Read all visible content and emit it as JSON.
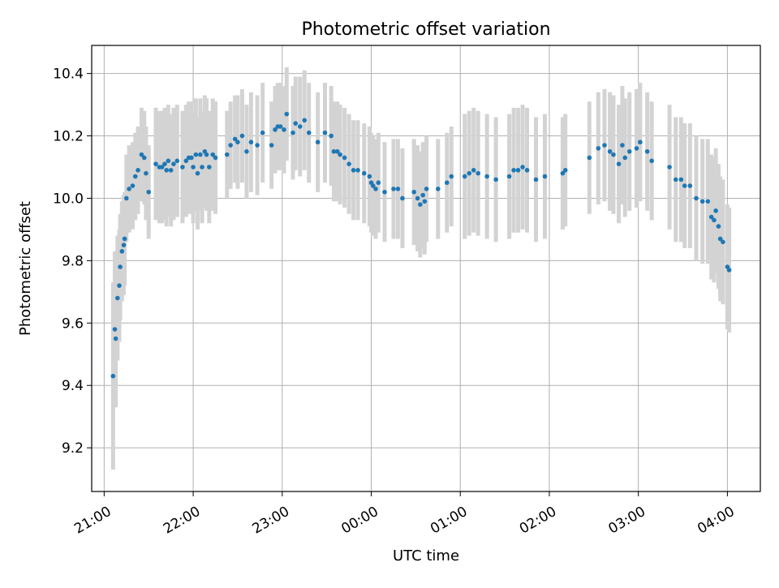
{
  "chart_data": {
    "type": "scatter",
    "title": "Photometric offset variation",
    "xlabel": "UTC time",
    "ylabel": "Photometric offset",
    "xlim_hours": [
      20.86,
      28.37
    ],
    "ylim": [
      9.06,
      10.49
    ],
    "x_tick_hours": [
      21,
      22,
      23,
      24,
      25,
      26,
      27,
      28
    ],
    "x_tick_labels": [
      "21:00",
      "22:00",
      "23:00",
      "00:00",
      "01:00",
      "02:00",
      "03:00",
      "04:00"
    ],
    "y_ticks": [
      9.2,
      9.4,
      9.6,
      9.8,
      10.0,
      10.2,
      10.4
    ],
    "y_tick_labels": [
      "9.2",
      "9.4",
      "9.6",
      "9.8",
      "10.0",
      "10.2",
      "10.4"
    ],
    "grid": true,
    "colors": {
      "points": "#1f77b4",
      "error_bars": "#d3d3d3",
      "grid": "#b0b0b0"
    },
    "series": [
      {
        "x_hours": [
          21.1,
          21.12,
          21.13,
          21.15,
          21.17,
          21.18,
          21.2,
          21.22,
          21.23,
          21.25,
          21.28,
          21.32,
          21.35,
          21.38,
          21.42,
          21.45,
          21.47,
          21.5,
          21.58,
          21.62,
          21.65,
          21.68,
          21.7,
          21.72,
          21.75,
          21.78,
          21.82,
          21.88,
          21.92,
          21.95,
          21.98,
          22.0,
          22.03,
          22.05,
          22.08,
          22.1,
          22.13,
          22.15,
          22.18,
          22.22,
          22.25,
          22.38,
          22.42,
          22.47,
          22.5,
          22.55,
          22.6,
          22.65,
          22.72,
          22.78,
          22.88,
          22.92,
          22.95,
          22.98,
          23.02,
          23.05,
          23.12,
          23.15,
          23.2,
          23.25,
          23.3,
          23.4,
          23.48,
          23.55,
          23.58,
          23.62,
          23.65,
          23.7,
          23.75,
          23.8,
          23.85,
          23.92,
          23.98,
          24.0,
          24.02,
          24.05,
          24.08,
          24.15,
          24.25,
          24.3,
          24.35,
          24.48,
          24.52,
          24.55,
          24.58,
          24.6,
          24.62,
          24.75,
          24.85,
          24.9,
          25.05,
          25.1,
          25.15,
          25.2,
          25.3,
          25.4,
          25.55,
          25.6,
          25.65,
          25.7,
          25.75,
          25.85,
          25.95,
          26.15,
          26.18,
          26.45,
          26.55,
          26.62,
          26.68,
          26.72,
          26.78,
          26.82,
          26.85,
          26.9,
          26.98,
          27.02,
          27.1,
          27.15,
          27.35,
          27.42,
          27.48,
          27.52,
          27.58,
          27.65,
          27.72,
          27.78,
          27.82,
          27.85,
          27.87,
          27.9,
          27.92,
          27.95,
          28.0,
          28.02
        ],
        "y": [
          9.43,
          9.58,
          9.55,
          9.68,
          9.72,
          9.78,
          9.83,
          9.85,
          9.87,
          10.0,
          10.03,
          10.04,
          10.07,
          10.09,
          10.14,
          10.13,
          10.08,
          10.02,
          10.11,
          10.1,
          10.1,
          10.11,
          10.09,
          10.12,
          10.09,
          10.11,
          10.12,
          10.1,
          10.12,
          10.13,
          10.13,
          10.1,
          10.14,
          10.08,
          10.14,
          10.1,
          10.15,
          10.14,
          10.1,
          10.14,
          10.13,
          10.14,
          10.17,
          10.19,
          10.18,
          10.2,
          10.15,
          10.18,
          10.17,
          10.21,
          10.17,
          10.22,
          10.23,
          10.23,
          10.22,
          10.27,
          10.21,
          10.24,
          10.23,
          10.25,
          10.21,
          10.18,
          10.21,
          10.2,
          10.15,
          10.15,
          10.14,
          10.13,
          10.11,
          10.09,
          10.09,
          10.08,
          10.07,
          10.05,
          10.04,
          10.03,
          10.05,
          10.02,
          10.03,
          10.03,
          10.0,
          10.02,
          10.0,
          9.98,
          10.01,
          9.99,
          10.03,
          10.03,
          10.05,
          10.07,
          10.07,
          10.08,
          10.09,
          10.08,
          10.07,
          10.06,
          10.07,
          10.09,
          10.09,
          10.1,
          10.09,
          10.06,
          10.07,
          10.08,
          10.09,
          10.13,
          10.16,
          10.17,
          10.15,
          10.14,
          10.11,
          10.17,
          10.13,
          10.15,
          10.16,
          10.18,
          10.15,
          10.12,
          10.1,
          10.06,
          10.06,
          10.04,
          10.04,
          10.0,
          9.99,
          9.99,
          9.94,
          9.93,
          9.96,
          9.91,
          9.87,
          9.86,
          9.78,
          9.77
        ],
        "y_err": [
          0.3,
          0.25,
          0.22,
          0.2,
          0.18,
          0.17,
          0.16,
          0.16,
          0.15,
          0.14,
          0.14,
          0.14,
          0.14,
          0.14,
          0.15,
          0.15,
          0.15,
          0.15,
          0.18,
          0.18,
          0.18,
          0.18,
          0.18,
          0.18,
          0.18,
          0.18,
          0.18,
          0.18,
          0.18,
          0.18,
          0.18,
          0.18,
          0.18,
          0.18,
          0.18,
          0.18,
          0.18,
          0.18,
          0.18,
          0.18,
          0.18,
          0.14,
          0.14,
          0.14,
          0.15,
          0.15,
          0.15,
          0.16,
          0.16,
          0.16,
          0.14,
          0.14,
          0.14,
          0.14,
          0.14,
          0.15,
          0.15,
          0.15,
          0.16,
          0.16,
          0.16,
          0.16,
          0.16,
          0.16,
          0.16,
          0.16,
          0.16,
          0.16,
          0.16,
          0.16,
          0.16,
          0.16,
          0.16,
          0.16,
          0.16,
          0.16,
          0.16,
          0.16,
          0.16,
          0.16,
          0.16,
          0.17,
          0.17,
          0.17,
          0.17,
          0.17,
          0.17,
          0.16,
          0.16,
          0.16,
          0.2,
          0.2,
          0.2,
          0.2,
          0.2,
          0.2,
          0.2,
          0.2,
          0.2,
          0.2,
          0.2,
          0.2,
          0.2,
          0.18,
          0.18,
          0.18,
          0.18,
          0.18,
          0.19,
          0.19,
          0.19,
          0.19,
          0.19,
          0.19,
          0.19,
          0.19,
          0.19,
          0.19,
          0.2,
          0.2,
          0.2,
          0.2,
          0.2,
          0.2,
          0.2,
          0.2,
          0.2,
          0.2,
          0.2,
          0.2,
          0.2,
          0.2,
          0.2,
          0.2
        ]
      }
    ]
  }
}
